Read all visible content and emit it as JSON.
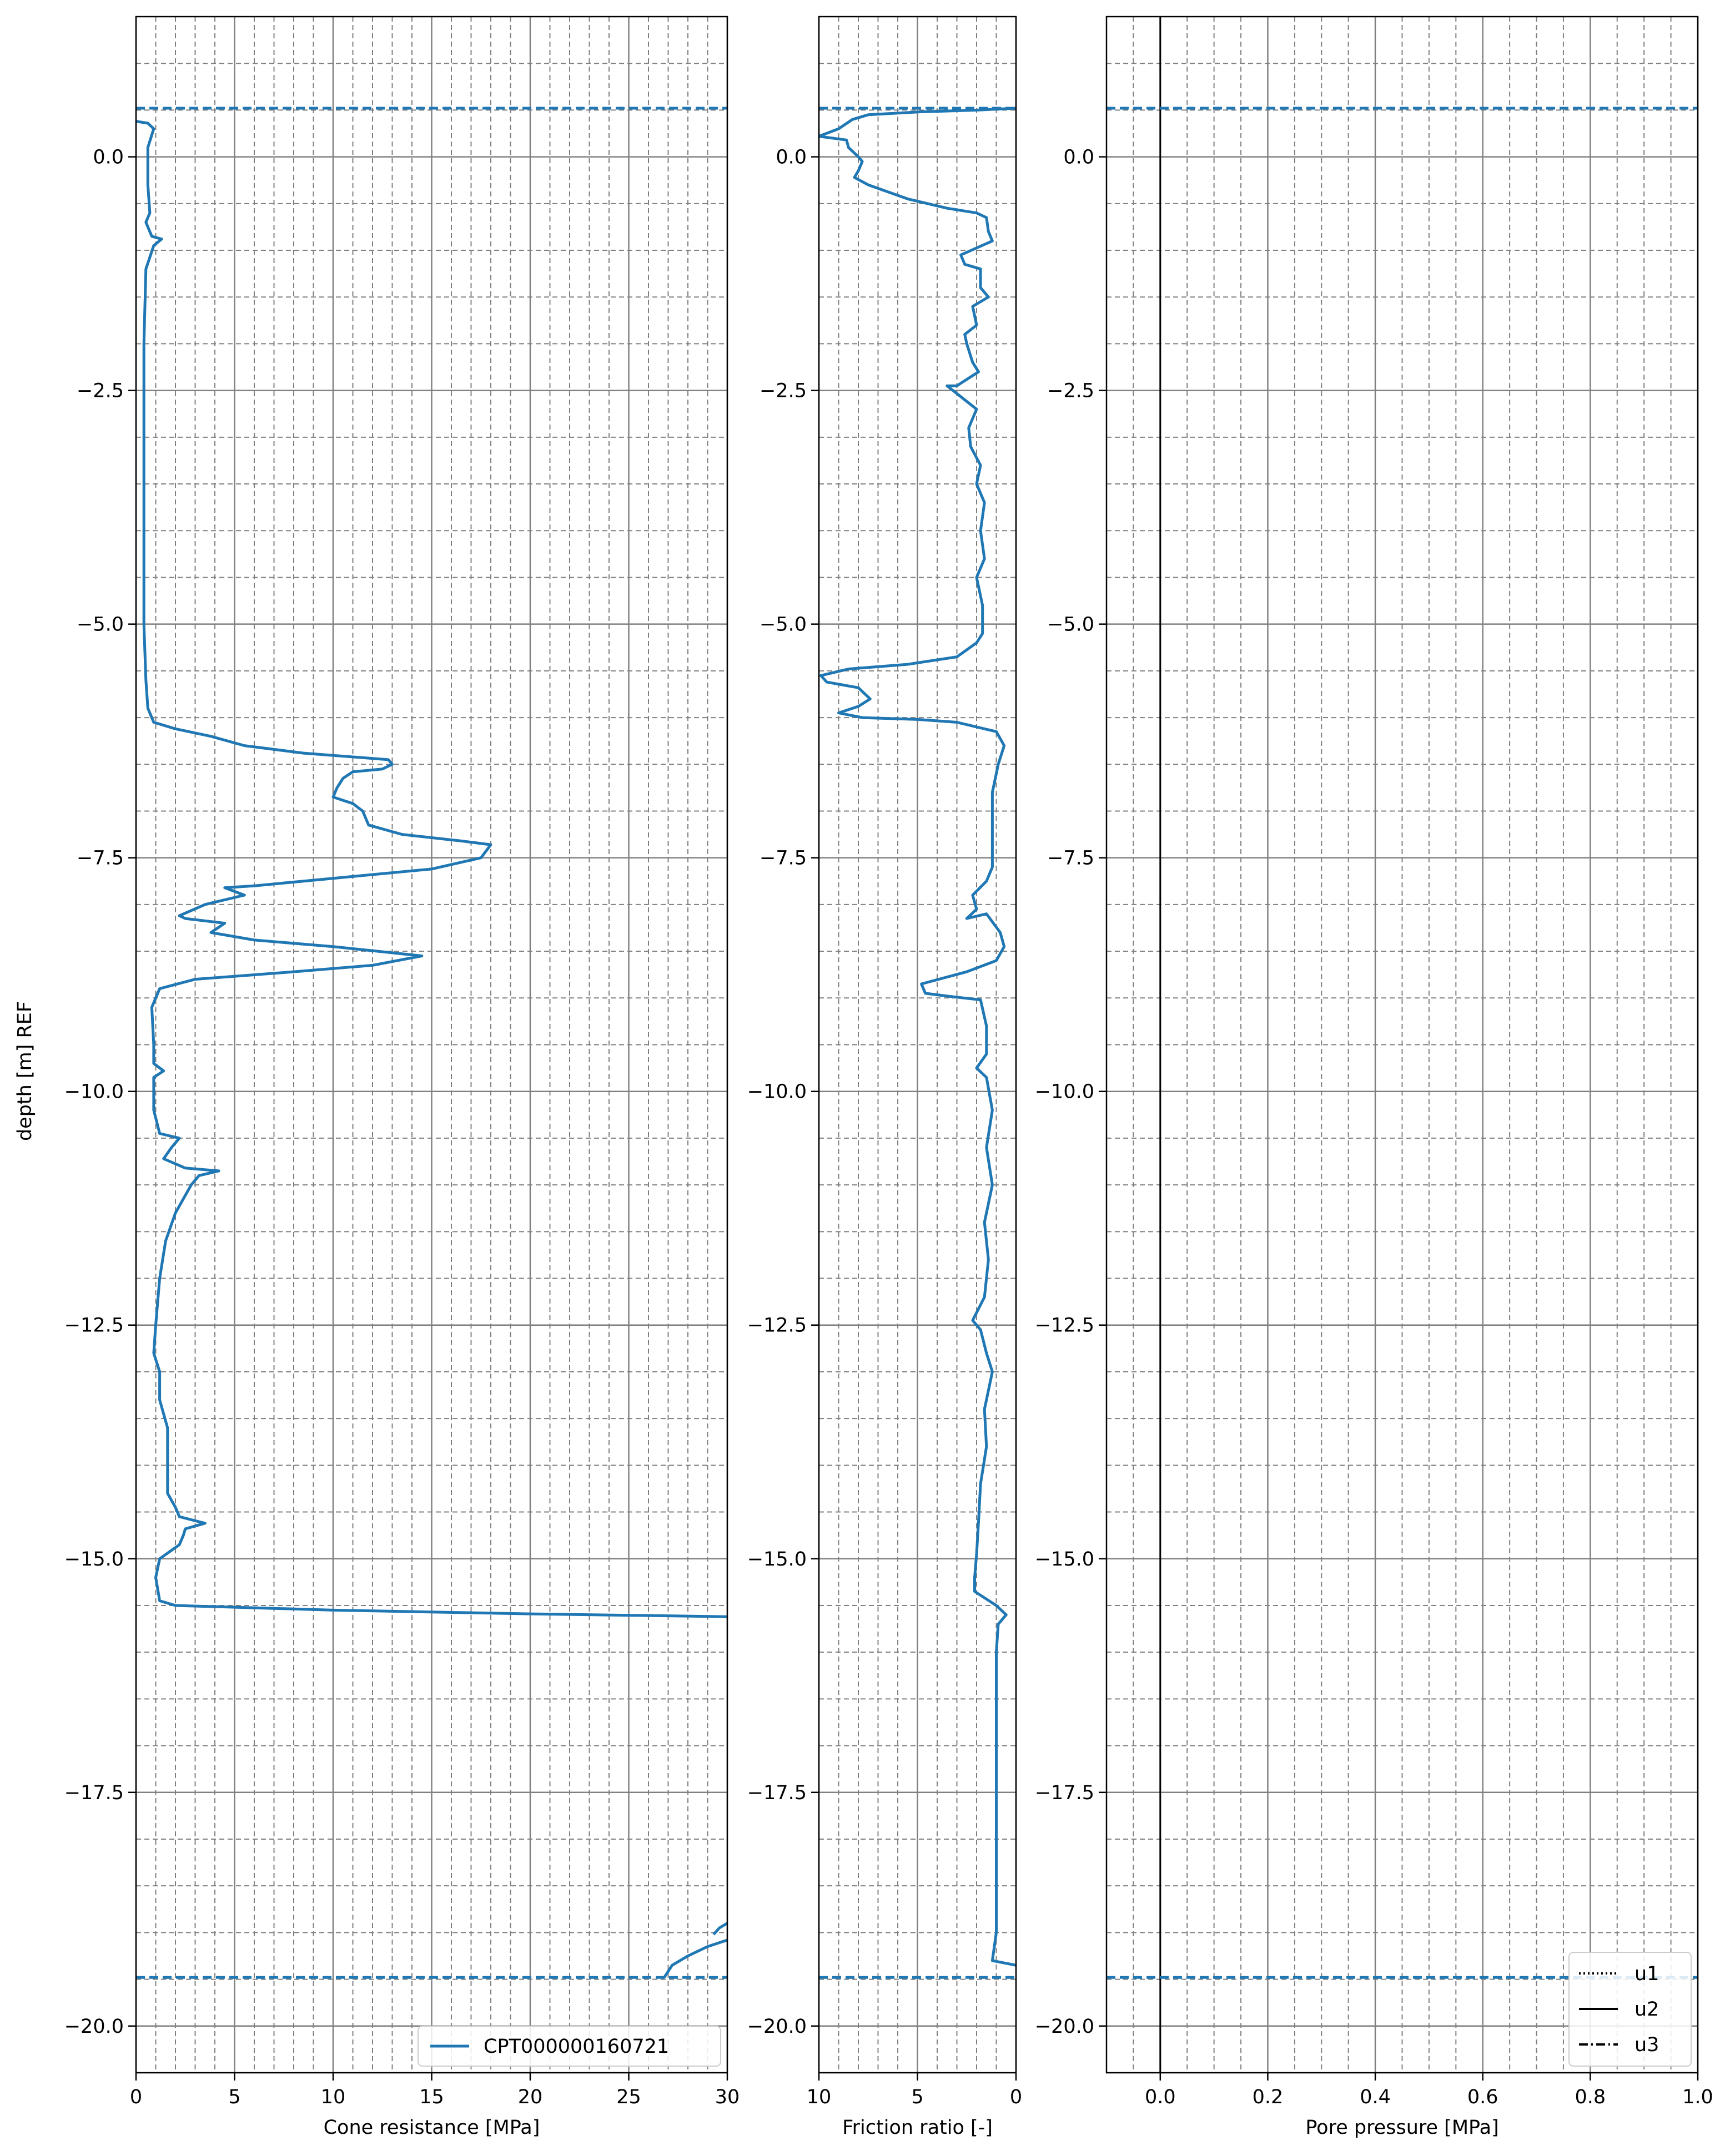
{
  "figure": {
    "ylabel": "depth [m] REF",
    "ylim": [
      -20.5,
      1.5
    ],
    "yticks": [
      0.0,
      -2.5,
      -5.0,
      -7.5,
      -10.0,
      -12.5,
      -15.0,
      -17.5,
      -20.0
    ],
    "ytick_labels": [
      "0.0",
      "−2.5",
      "−5.0",
      "−7.5",
      "−10.0",
      "−12.5",
      "−15.0",
      "−17.5",
      "−20.0"
    ],
    "minor_grid_step": 0.5,
    "surface_level": 0.52,
    "final_depth": -19.48,
    "line_color": "#1f77b4",
    "grid_major_color": "#808080",
    "grid_minor_color": "#808080"
  },
  "chart_data": [
    {
      "type": "line",
      "xlabel": "Cone resistance [MPa]",
      "xlim": [
        0,
        30
      ],
      "xticks": [
        0,
        5,
        10,
        15,
        20,
        25,
        30
      ],
      "xtick_labels": [
        "0",
        "5",
        "10",
        "15",
        "20",
        "25",
        "30"
      ],
      "minor_x_step": 1,
      "legend": {
        "location": "lower-right",
        "entries": [
          "CPT000000160721"
        ]
      },
      "series": [
        {
          "name": "CPT000000160721",
          "points": [
            [
              0.0,
              0.38
            ],
            [
              0.6,
              0.36
            ],
            [
              0.9,
              0.3
            ],
            [
              0.6,
              0.1
            ],
            [
              0.6,
              -0.3
            ],
            [
              0.7,
              -0.6
            ],
            [
              0.5,
              -0.7
            ],
            [
              0.8,
              -0.85
            ],
            [
              1.3,
              -0.88
            ],
            [
              0.9,
              -0.95
            ],
            [
              0.5,
              -1.2
            ],
            [
              0.4,
              -2.0
            ],
            [
              0.4,
              -3.0
            ],
            [
              0.4,
              -4.0
            ],
            [
              0.4,
              -5.0
            ],
            [
              0.5,
              -5.6
            ],
            [
              0.6,
              -5.9
            ],
            [
              0.9,
              -6.05
            ],
            [
              2.0,
              -6.12
            ],
            [
              3.8,
              -6.2
            ],
            [
              5.5,
              -6.3
            ],
            [
              8.5,
              -6.38
            ],
            [
              12.8,
              -6.45
            ],
            [
              13.0,
              -6.5
            ],
            [
              12.5,
              -6.55
            ],
            [
              11.0,
              -6.58
            ],
            [
              10.5,
              -6.65
            ],
            [
              10.2,
              -6.75
            ],
            [
              10.0,
              -6.85
            ],
            [
              11.0,
              -6.92
            ],
            [
              11.5,
              -7.0
            ],
            [
              11.8,
              -7.15
            ],
            [
              13.5,
              -7.25
            ],
            [
              16.5,
              -7.32
            ],
            [
              18.0,
              -7.36
            ],
            [
              17.5,
              -7.5
            ],
            [
              15.0,
              -7.62
            ],
            [
              10.0,
              -7.72
            ],
            [
              6.0,
              -7.8
            ],
            [
              4.5,
              -7.82
            ],
            [
              5.5,
              -7.9
            ],
            [
              3.5,
              -8.0
            ],
            [
              2.2,
              -8.12
            ],
            [
              2.5,
              -8.15
            ],
            [
              4.5,
              -8.2
            ],
            [
              3.8,
              -8.3
            ],
            [
              6.0,
              -8.38
            ],
            [
              10.0,
              -8.45
            ],
            [
              14.5,
              -8.55
            ],
            [
              12.0,
              -8.65
            ],
            [
              8.0,
              -8.72
            ],
            [
              3.0,
              -8.8
            ],
            [
              1.2,
              -8.9
            ],
            [
              0.8,
              -9.1
            ],
            [
              0.9,
              -9.5
            ],
            [
              0.9,
              -9.7
            ],
            [
              1.4,
              -9.78
            ],
            [
              0.9,
              -9.85
            ],
            [
              0.9,
              -10.2
            ],
            [
              1.2,
              -10.45
            ],
            [
              2.2,
              -10.5
            ],
            [
              1.8,
              -10.6
            ],
            [
              1.4,
              -10.72
            ],
            [
              2.5,
              -10.82
            ],
            [
              4.2,
              -10.85
            ],
            [
              3.2,
              -10.9
            ],
            [
              2.8,
              -11.0
            ],
            [
              2.0,
              -11.3
            ],
            [
              1.5,
              -11.6
            ],
            [
              1.2,
              -12.0
            ],
            [
              1.0,
              -12.5
            ],
            [
              0.9,
              -12.8
            ],
            [
              1.2,
              -13.0
            ],
            [
              1.2,
              -13.3
            ],
            [
              1.6,
              -13.6
            ],
            [
              1.6,
              -14.0
            ],
            [
              1.6,
              -14.3
            ],
            [
              2.0,
              -14.45
            ],
            [
              2.2,
              -14.55
            ],
            [
              3.5,
              -14.62
            ],
            [
              2.5,
              -14.68
            ],
            [
              2.4,
              -14.75
            ],
            [
              2.2,
              -14.85
            ],
            [
              1.2,
              -15.0
            ],
            [
              1.0,
              -15.2
            ],
            [
              1.2,
              -15.45
            ],
            [
              2.0,
              -15.5
            ],
            [
              10.0,
              -15.55
            ],
            [
              20.0,
              -15.59
            ],
            [
              30.0,
              -15.62
            ]
          ]
        },
        {
          "name": "CPT000000160721",
          "points": [
            [
              26.8,
              -19.48
            ],
            [
              27.2,
              -19.35
            ],
            [
              28.0,
              -19.25
            ],
            [
              29.0,
              -19.15
            ],
            [
              30.0,
              -19.08
            ]
          ]
        },
        {
          "name": "CPT000000160721",
          "points": [
            [
              29.3,
              -19.02
            ],
            [
              29.6,
              -18.95
            ],
            [
              30.0,
              -18.9
            ]
          ]
        }
      ]
    },
    {
      "type": "line",
      "xlabel": "Friction ratio [-]",
      "xlim": [
        10,
        0
      ],
      "xticks": [
        10,
        5,
        0
      ],
      "xtick_labels": [
        "10",
        "5",
        "0"
      ],
      "minor_x_step": 1,
      "series": [
        {
          "name": "CPT000000160721",
          "points": [
            [
              0.0,
              0.52
            ],
            [
              2.0,
              0.5
            ],
            [
              5.0,
              0.48
            ],
            [
              7.5,
              0.45
            ],
            [
              8.3,
              0.4
            ],
            [
              9.0,
              0.3
            ],
            [
              10.0,
              0.22
            ],
            [
              8.6,
              0.18
            ],
            [
              8.5,
              0.1
            ],
            [
              8.0,
              0.0
            ],
            [
              7.8,
              -0.05
            ],
            [
              8.0,
              -0.15
            ],
            [
              8.2,
              -0.22
            ],
            [
              7.5,
              -0.3
            ],
            [
              5.5,
              -0.45
            ],
            [
              3.5,
              -0.55
            ],
            [
              2.0,
              -0.6
            ],
            [
              1.5,
              -0.65
            ],
            [
              1.4,
              -0.8
            ],
            [
              1.2,
              -0.9
            ],
            [
              2.8,
              -1.05
            ],
            [
              2.6,
              -1.15
            ],
            [
              1.8,
              -1.2
            ],
            [
              1.8,
              -1.4
            ],
            [
              1.4,
              -1.5
            ],
            [
              2.2,
              -1.6
            ],
            [
              2.0,
              -1.8
            ],
            [
              2.6,
              -1.9
            ],
            [
              2.5,
              -2.0
            ],
            [
              2.2,
              -2.2
            ],
            [
              1.9,
              -2.3
            ],
            [
              3.0,
              -2.45
            ],
            [
              3.5,
              -2.45
            ],
            [
              2.6,
              -2.6
            ],
            [
              2.0,
              -2.7
            ],
            [
              2.4,
              -2.9
            ],
            [
              2.3,
              -3.1
            ],
            [
              1.8,
              -3.3
            ],
            [
              2.0,
              -3.5
            ],
            [
              1.6,
              -3.7
            ],
            [
              1.8,
              -4.0
            ],
            [
              1.6,
              -4.3
            ],
            [
              2.0,
              -4.5
            ],
            [
              1.7,
              -4.8
            ],
            [
              1.7,
              -5.1
            ],
            [
              2.0,
              -5.2
            ],
            [
              3.0,
              -5.35
            ],
            [
              5.5,
              -5.43
            ],
            [
              8.5,
              -5.48
            ],
            [
              9.9,
              -5.55
            ],
            [
              9.6,
              -5.62
            ],
            [
              8.0,
              -5.68
            ],
            [
              7.4,
              -5.8
            ],
            [
              8.0,
              -5.88
            ],
            [
              9.0,
              -5.95
            ],
            [
              7.8,
              -6.0
            ],
            [
              5.0,
              -6.02
            ],
            [
              3.0,
              -6.05
            ],
            [
              1.0,
              -6.15
            ],
            [
              0.6,
              -6.3
            ],
            [
              0.9,
              -6.5
            ],
            [
              1.2,
              -6.8
            ],
            [
              1.2,
              -7.2
            ],
            [
              1.2,
              -7.6
            ],
            [
              1.5,
              -7.75
            ],
            [
              2.2,
              -7.9
            ],
            [
              2.0,
              -8.05
            ],
            [
              2.5,
              -8.15
            ],
            [
              1.5,
              -8.1
            ],
            [
              0.8,
              -8.3
            ],
            [
              0.6,
              -8.45
            ],
            [
              1.0,
              -8.6
            ],
            [
              2.5,
              -8.72
            ],
            [
              4.8,
              -8.85
            ],
            [
              4.6,
              -8.95
            ],
            [
              3.5,
              -8.98
            ],
            [
              1.8,
              -9.02
            ],
            [
              1.5,
              -9.3
            ],
            [
              1.5,
              -9.6
            ],
            [
              2.0,
              -9.75
            ],
            [
              1.5,
              -9.85
            ],
            [
              1.2,
              -10.2
            ],
            [
              1.5,
              -10.6
            ],
            [
              1.2,
              -11.0
            ],
            [
              1.6,
              -11.4
            ],
            [
              1.4,
              -11.8
            ],
            [
              1.6,
              -12.2
            ],
            [
              2.2,
              -12.45
            ],
            [
              1.8,
              -12.55
            ],
            [
              1.5,
              -12.8
            ],
            [
              1.2,
              -13.0
            ],
            [
              1.6,
              -13.4
            ],
            [
              1.5,
              -13.8
            ],
            [
              1.8,
              -14.2
            ],
            [
              1.9,
              -14.6
            ],
            [
              2.0,
              -14.95
            ],
            [
              2.1,
              -15.2
            ],
            [
              2.1,
              -15.35
            ],
            [
              1.0,
              -15.5
            ],
            [
              0.5,
              -15.6
            ],
            [
              0.9,
              -15.7
            ],
            [
              1.0,
              -16.0
            ],
            [
              1.0,
              -16.5
            ],
            [
              1.0,
              -17.0
            ],
            [
              1.0,
              -17.5
            ],
            [
              1.0,
              -18.0
            ],
            [
              1.0,
              -18.5
            ],
            [
              1.0,
              -19.0
            ],
            [
              1.2,
              -19.3
            ],
            [
              0.0,
              -19.35
            ]
          ]
        }
      ]
    },
    {
      "type": "line",
      "xlabel": "Pore pressure [MPa]",
      "xlim": [
        -0.1,
        1.0
      ],
      "xticks": [
        0.0,
        0.2,
        0.4,
        0.6,
        0.8,
        1.0
      ],
      "xtick_labels": [
        "0.0",
        "0.2",
        "0.4",
        "0.6",
        "0.8",
        "1.0"
      ],
      "minor_x_step": 0.05,
      "legend": {
        "location": "lower-right",
        "entries": [
          "u1",
          "u2",
          "u3"
        ]
      },
      "series": []
    }
  ]
}
